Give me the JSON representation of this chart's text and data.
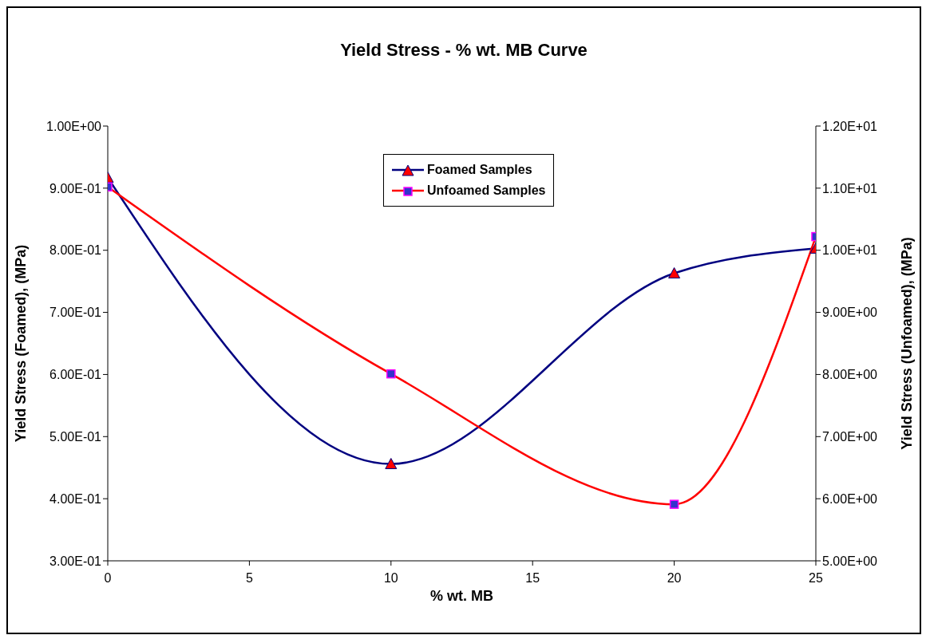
{
  "chart_data": {
    "type": "line",
    "title": "Yield Stress - % wt. MB Curve",
    "xlabel": "% wt. MB",
    "ylabel": "Yield Stress (Foamed), (MPa)",
    "y2label": "Yield Stress (Unfoamed), (MPa)",
    "x": [
      0,
      10,
      20,
      25
    ],
    "series": [
      {
        "name": "Foamed Samples",
        "color": "#000080",
        "values": [
          0.917,
          0.456,
          0.763,
          0.803
        ],
        "marker": "triangle"
      },
      {
        "name": "Unfoamed Samples",
        "color": "#ff0000",
        "values": [
          11.02,
          8.01,
          5.91,
          10.22
        ],
        "axis": "y2",
        "marker": "square"
      }
    ],
    "xlim": [
      0,
      25
    ],
    "xticks": [
      0,
      5,
      10,
      15,
      20,
      25
    ],
    "ylim": [
      0.3,
      1.0
    ],
    "yticks": [
      {
        "value": 0.3,
        "label": "3.00E-01"
      },
      {
        "value": 0.4,
        "label": "4.00E-01"
      },
      {
        "value": 0.5,
        "label": "5.00E-01"
      },
      {
        "value": 0.6,
        "label": "6.00E-01"
      },
      {
        "value": 0.7,
        "label": "7.00E-01"
      },
      {
        "value": 0.8,
        "label": "8.00E-01"
      },
      {
        "value": 0.9,
        "label": "9.00E-01"
      },
      {
        "value": 1.0,
        "label": "1.00E+00"
      }
    ],
    "y2lim": [
      5,
      12
    ],
    "y2ticks": [
      {
        "value": 5,
        "label": "5.00E+00"
      },
      {
        "value": 6,
        "label": "6.00E+00"
      },
      {
        "value": 7,
        "label": "7.00E+00"
      },
      {
        "value": 8,
        "label": "8.00E+00"
      },
      {
        "value": 9,
        "label": "9.00E+00"
      },
      {
        "value": 10,
        "label": "1.00E+01"
      },
      {
        "value": 11,
        "label": "1.10E+01"
      },
      {
        "value": 12,
        "label": "1.20E+01"
      }
    ],
    "grid": false,
    "legend": "top",
    "line_style": "solid"
  }
}
